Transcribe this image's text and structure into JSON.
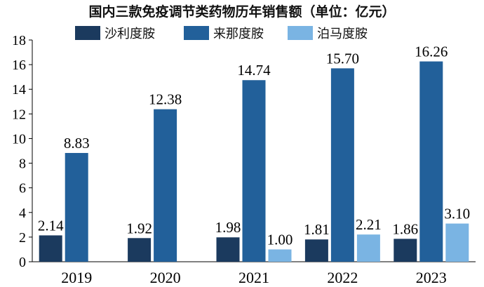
{
  "chart_data": {
    "type": "bar",
    "title": "国内三款免疫调节类药物历年销售额（单位：亿元）",
    "categories": [
      "2019",
      "2020",
      "2021",
      "2022",
      "2023"
    ],
    "series": [
      {
        "name": "沙利度胺",
        "color": "#1b3a5e",
        "values": [
          2.14,
          1.92,
          1.98,
          1.81,
          1.86
        ],
        "labels": [
          "2.14",
          "1.92",
          "1.98",
          "1.81",
          "1.86"
        ]
      },
      {
        "name": "来那度胺",
        "color": "#22609a",
        "values": [
          8.83,
          12.38,
          14.74,
          15.7,
          16.26
        ],
        "labels": [
          "8.83",
          "12.38",
          "14.74",
          "15.70",
          "16.26"
        ]
      },
      {
        "name": "泊马度胺",
        "color": "#7ab4e3",
        "values": [
          null,
          null,
          1.0,
          2.21,
          3.1
        ],
        "labels": [
          null,
          null,
          "1.00",
          "2.21",
          "3.10"
        ]
      }
    ],
    "ylim": [
      0,
      18
    ],
    "yticks": [
      "0",
      "2",
      "4",
      "6",
      "8",
      "10",
      "12",
      "14",
      "16",
      "18"
    ],
    "grid": false,
    "legend_position": "top"
  }
}
